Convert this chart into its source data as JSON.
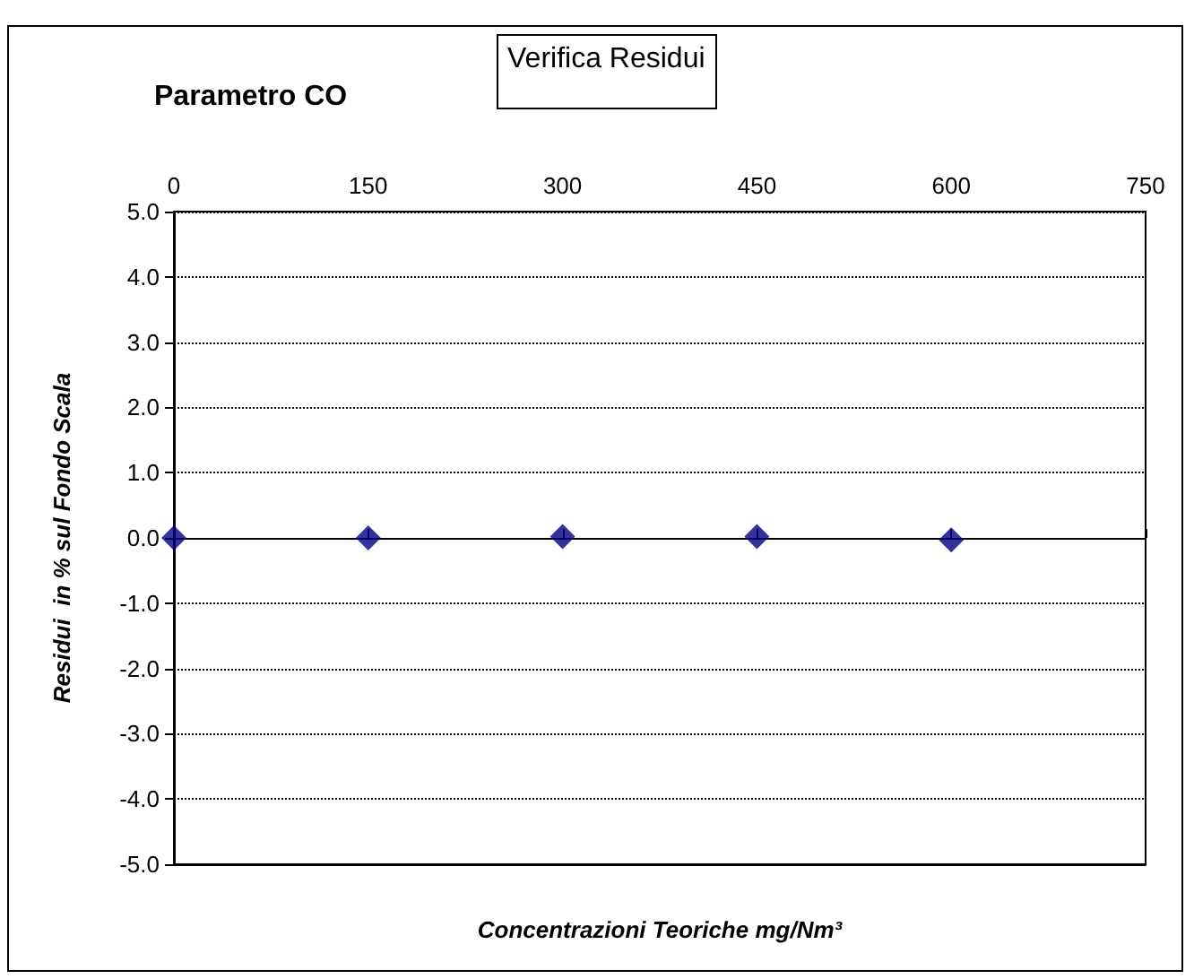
{
  "chart_data": {
    "type": "scatter",
    "title": "Parametro CO",
    "subtitle": "Verifica Residui",
    "xlabel": "Concentrazioni Teoriche mg/Nm³",
    "ylabel": "Residui  in % sul Fondo Scala",
    "x": [
      0,
      150,
      300,
      450,
      600
    ],
    "series": [
      {
        "color": "#000080",
        "values": [
          0,
          0,
          0.02,
          0.02,
          -0.03
        ]
      }
    ],
    "xlim": [
      0,
      750
    ],
    "xticks": [
      0,
      150,
      300,
      450,
      600,
      750
    ],
    "ylim": [
      -5,
      5
    ],
    "yticks": [
      {
        "value": -5,
        "label": "-5.0"
      },
      {
        "value": -4,
        "label": "-4.0"
      },
      {
        "value": -3,
        "label": "-3.0"
      },
      {
        "value": -2,
        "label": "-2.0"
      },
      {
        "value": -1,
        "label": "-1.0"
      },
      {
        "value": 0,
        "label": "0.0"
      },
      {
        "value": 1,
        "label": "1.0"
      },
      {
        "value": 2,
        "label": "2.0"
      },
      {
        "value": 3,
        "label": "3.0"
      },
      {
        "value": 4,
        "label": "4.0"
      },
      {
        "value": 5,
        "label": "5.0"
      }
    ],
    "grid": "y",
    "marker": "diamond"
  }
}
